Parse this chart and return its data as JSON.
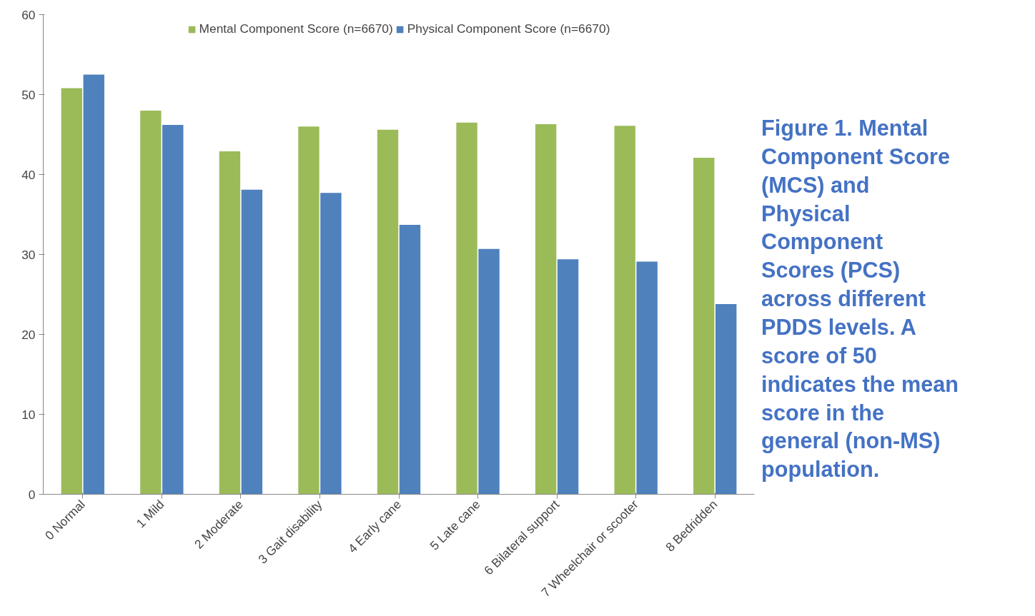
{
  "chart_data": {
    "type": "bar",
    "title": "Figure 1. Mental Component Score (MCS) and Physical Component Scores (PCS) across different PDDS levels. A score of 50 indicates the mean score in the general (non-MS) population.",
    "categories": [
      "0 Normal",
      "1 Mild",
      "2 Moderate",
      "3 Gait disability",
      "4 Early cane",
      "5 Late cane",
      "6 Bilateral support",
      "7 Wheelchair or scooter",
      "8 Bedridden"
    ],
    "series": [
      {
        "name": "Mental Component Score (n=6670)",
        "color": "#9bbb59",
        "values": [
          50.8,
          48.0,
          42.9,
          46.0,
          45.6,
          46.5,
          46.3,
          46.1,
          42.1
        ]
      },
      {
        "name": "Physical Component Score (n=6670)",
        "color": "#4f81bd",
        "values": [
          52.5,
          46.2,
          38.1,
          37.7,
          33.7,
          30.7,
          29.4,
          29.1,
          23.8
        ]
      }
    ],
    "ylim": [
      0,
      60
    ],
    "yticks": [
      0,
      10,
      20,
      30,
      40,
      50,
      60
    ],
    "grid": false,
    "legend": "top"
  }
}
